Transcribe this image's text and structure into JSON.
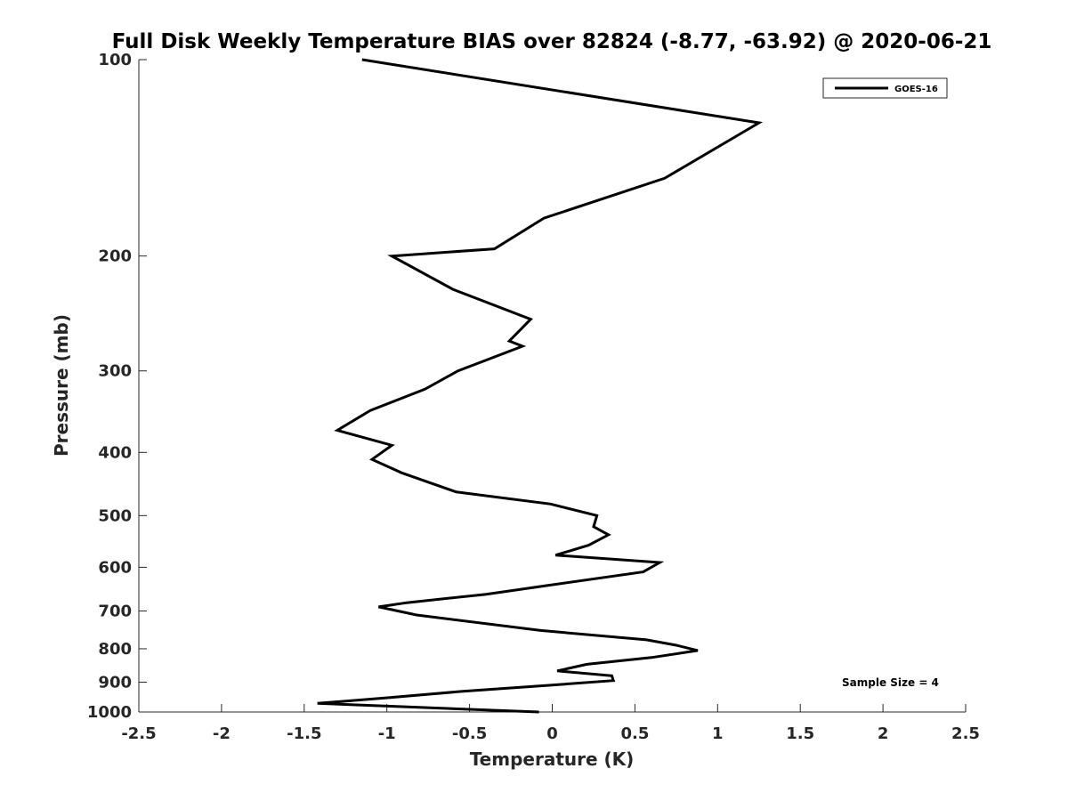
{
  "chart_data": {
    "type": "line",
    "title": "Full Disk Weekly Temperature BIAS over 82824 (-8.77, -63.92) @ 2020-06-21",
    "xlabel": "Temperature (K)",
    "ylabel": "Pressure (mb)",
    "xlim": [
      -2.5,
      2.5
    ],
    "ylim": [
      100,
      1000
    ],
    "y_scale": "log",
    "y_reversed": true,
    "x_ticks": [
      "-2.5",
      "-2",
      "-1.5",
      "-1",
      "-0.5",
      "0",
      "0.5",
      "1",
      "1.5",
      "2",
      "2.5"
    ],
    "x_tick_values": [
      -2.5,
      -2,
      -1.5,
      -1,
      -0.5,
      0,
      0.5,
      1,
      1.5,
      2,
      2.5
    ],
    "y_ticks": [
      "100",
      "200",
      "300",
      "400",
      "500",
      "600",
      "700",
      "800",
      "900",
      "1000"
    ],
    "y_tick_values": [
      100,
      200,
      300,
      400,
      500,
      600,
      700,
      800,
      900,
      1000
    ],
    "grid": false,
    "legend": {
      "placement": "top-right",
      "entries": [
        "GOES-16"
      ]
    },
    "annotations": [
      "Sample Size = 4"
    ],
    "series": [
      {
        "name": "GOES-16",
        "color": "#000000",
        "points": [
          [
            -1.15,
            100
          ],
          [
            1.25,
            125
          ],
          [
            0.68,
            152
          ],
          [
            -0.05,
            175
          ],
          [
            -0.35,
            195
          ],
          [
            -0.97,
            200
          ],
          [
            -0.6,
            225
          ],
          [
            -0.13,
            250
          ],
          [
            -0.26,
            270
          ],
          [
            -0.18,
            275
          ],
          [
            -0.57,
            300
          ],
          [
            -0.77,
            320
          ],
          [
            -1.1,
            345
          ],
          [
            -1.3,
            370
          ],
          [
            -0.97,
            390
          ],
          [
            -1.09,
            410
          ],
          [
            -0.91,
            430
          ],
          [
            -0.58,
            460
          ],
          [
            -0.01,
            480
          ],
          [
            0.27,
            500
          ],
          [
            0.25,
            520
          ],
          [
            0.34,
            535
          ],
          [
            0.22,
            555
          ],
          [
            0.02,
            575
          ],
          [
            0.65,
            590
          ],
          [
            0.55,
            610
          ],
          [
            -0.03,
            640
          ],
          [
            -0.4,
            660
          ],
          [
            -0.88,
            680
          ],
          [
            -1.05,
            690
          ],
          [
            -0.82,
            710
          ],
          [
            -0.07,
            750
          ],
          [
            0.57,
            775
          ],
          [
            0.75,
            790
          ],
          [
            0.88,
            805
          ],
          [
            0.6,
            825
          ],
          [
            0.21,
            845
          ],
          [
            0.03,
            865
          ],
          [
            0.36,
            880
          ],
          [
            0.37,
            895
          ],
          [
            -0.02,
            910
          ],
          [
            -0.55,
            930
          ],
          [
            -0.98,
            950
          ],
          [
            -1.42,
            970
          ],
          [
            -0.08,
            1000
          ]
        ]
      }
    ]
  }
}
